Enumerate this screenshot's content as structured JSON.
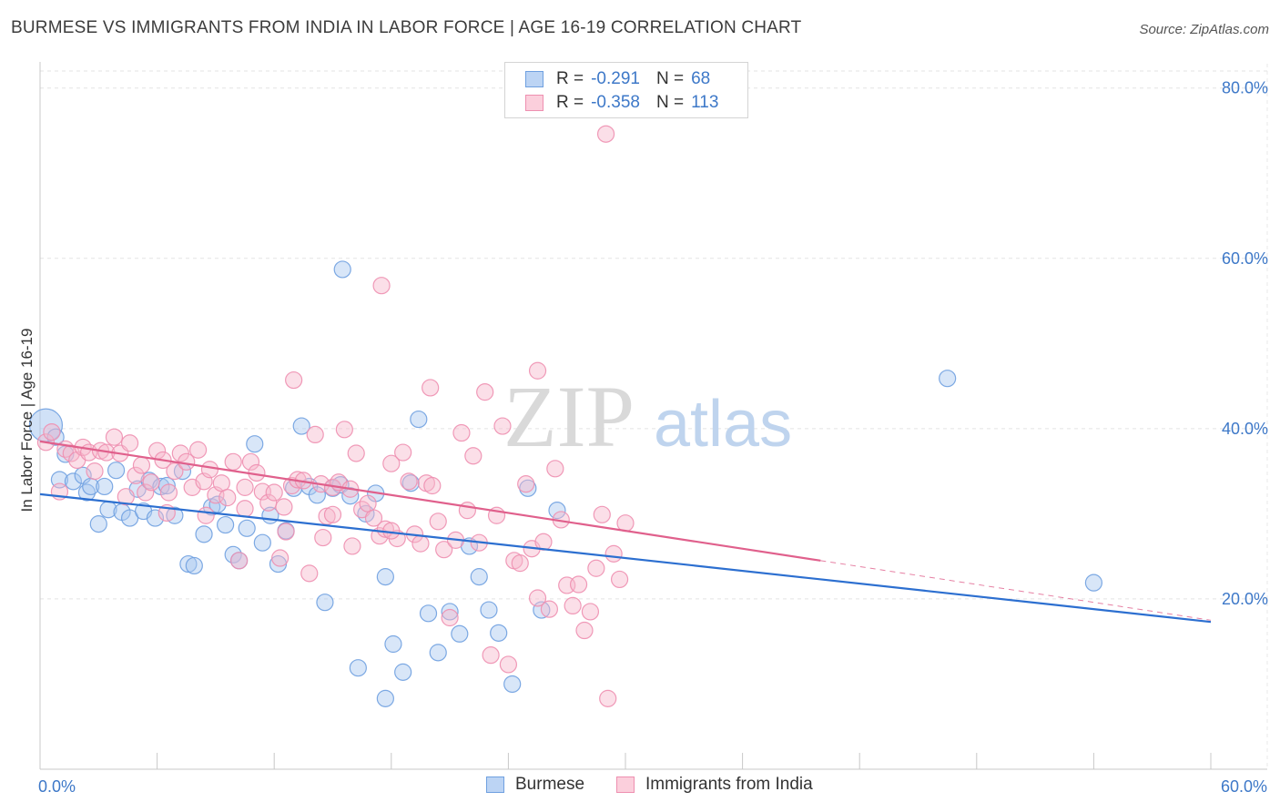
{
  "header": {
    "title": "BURMESE VS IMMIGRANTS FROM INDIA IN LABOR FORCE | AGE 16-19 CORRELATION CHART",
    "source": "Source: ZipAtlas.com"
  },
  "watermark": {
    "zip": "ZIP",
    "atlas": "atlas"
  },
  "legend": {
    "rows": [
      {
        "r_label": "R =",
        "r_value": "-0.291",
        "n_label": "N =",
        "n_value": "68",
        "color": "#a9c8f0"
      },
      {
        "r_label": "R =",
        "r_value": "-0.358",
        "n_label": "N =",
        "n_value": "113",
        "color": "#f7b9cc"
      }
    ]
  },
  "bottom_legend": {
    "series1": "Burmese",
    "series2": "Immigrants from India"
  },
  "chart_data": {
    "type": "scatter",
    "title": "BURMESE VS IMMIGRANTS FROM INDIA IN LABOR FORCE | AGE 16-19 CORRELATION CHART",
    "xlabel": "",
    "ylabel": "In Labor Force | Age 16-19",
    "xlim": [
      0,
      60
    ],
    "ylim": [
      0,
      82
    ],
    "x_tick_labels": {
      "min": "0.0%",
      "max": "60.0%"
    },
    "y_ticks": [
      {
        "value": 20,
        "label": "20.0%"
      },
      {
        "value": 40,
        "label": "40.0%"
      },
      {
        "value": 60,
        "label": "60.0%"
      },
      {
        "value": 80,
        "label": "80.0%"
      }
    ],
    "series": [
      {
        "name": "Burmese",
        "color": "#6fa0e0",
        "fill": "#a9c8f0",
        "line_color": "#2c6fd0",
        "trend": {
          "x0": 0,
          "y0": 32.3,
          "x1": 60,
          "y1": 17.3
        },
        "points": [
          [
            0.3,
            40.4
          ],
          [
            0.8,
            39.0
          ],
          [
            1.0,
            34.0
          ],
          [
            1.3,
            37.0
          ],
          [
            1.7,
            33.8
          ],
          [
            2.2,
            34.5
          ],
          [
            2.4,
            32.5
          ],
          [
            2.6,
            33.2
          ],
          [
            3.0,
            28.8
          ],
          [
            3.3,
            33.2
          ],
          [
            3.5,
            30.5
          ],
          [
            3.9,
            35.1
          ],
          [
            4.2,
            30.2
          ],
          [
            4.6,
            29.5
          ],
          [
            5.0,
            32.9
          ],
          [
            5.3,
            30.3
          ],
          [
            5.6,
            33.9
          ],
          [
            5.9,
            29.5
          ],
          [
            6.2,
            33.2
          ],
          [
            6.5,
            33.3
          ],
          [
            6.9,
            29.8
          ],
          [
            7.3,
            35.0
          ],
          [
            7.6,
            24.1
          ],
          [
            7.9,
            23.9
          ],
          [
            8.4,
            27.6
          ],
          [
            8.8,
            30.8
          ],
          [
            9.1,
            31.1
          ],
          [
            9.5,
            28.7
          ],
          [
            9.9,
            25.2
          ],
          [
            10.2,
            24.5
          ],
          [
            10.6,
            28.3
          ],
          [
            11.0,
            38.2
          ],
          [
            11.4,
            26.6
          ],
          [
            11.8,
            29.8
          ],
          [
            12.2,
            24.1
          ],
          [
            12.6,
            28.0
          ],
          [
            13.0,
            33.0
          ],
          [
            13.4,
            40.3
          ],
          [
            13.8,
            33.2
          ],
          [
            14.2,
            32.2
          ],
          [
            14.6,
            19.6
          ],
          [
            15.0,
            33.0
          ],
          [
            15.4,
            33.4
          ],
          [
            15.9,
            32.1
          ],
          [
            16.3,
            11.9
          ],
          [
            16.7,
            30.0
          ],
          [
            17.2,
            32.4
          ],
          [
            17.7,
            22.6
          ],
          [
            18.1,
            14.7
          ],
          [
            18.6,
            11.4
          ],
          [
            19.0,
            33.6
          ],
          [
            19.4,
            41.1
          ],
          [
            19.9,
            18.3
          ],
          [
            20.4,
            13.7
          ],
          [
            21.0,
            18.5
          ],
          [
            21.5,
            15.9
          ],
          [
            22.0,
            26.2
          ],
          [
            22.5,
            22.6
          ],
          [
            23.0,
            18.7
          ],
          [
            23.5,
            16.0
          ],
          [
            24.2,
            10.0
          ],
          [
            25.0,
            33.0
          ],
          [
            25.7,
            18.7
          ],
          [
            26.5,
            30.4
          ],
          [
            15.5,
            58.7
          ],
          [
            46.5,
            45.9
          ],
          [
            54.0,
            21.9
          ],
          [
            17.7,
            8.3
          ]
        ]
      },
      {
        "name": "Immigrants from India",
        "color": "#ee8fb0",
        "fill": "#f7b9cc",
        "line_color": "#e0608c",
        "trend": {
          "x0": 0,
          "y0": 38.5,
          "x1": 40,
          "y1": 24.5
        },
        "trend_dashed": {
          "x0": 40,
          "y0": 24.5,
          "x1": 60,
          "y1": 17.5
        },
        "points": [
          [
            0.3,
            38.4
          ],
          [
            0.6,
            39.6
          ],
          [
            1.0,
            32.6
          ],
          [
            1.3,
            37.6
          ],
          [
            1.6,
            37.1
          ],
          [
            1.9,
            36.3
          ],
          [
            2.2,
            37.8
          ],
          [
            2.5,
            37.2
          ],
          [
            2.8,
            35.0
          ],
          [
            3.1,
            37.4
          ],
          [
            3.4,
            37.2
          ],
          [
            3.8,
            39.0
          ],
          [
            4.1,
            37.1
          ],
          [
            4.4,
            32.0
          ],
          [
            4.6,
            38.3
          ],
          [
            4.9,
            34.5
          ],
          [
            5.2,
            35.7
          ],
          [
            5.4,
            32.5
          ],
          [
            5.7,
            33.7
          ],
          [
            6.0,
            37.4
          ],
          [
            6.3,
            36.3
          ],
          [
            6.6,
            32.5
          ],
          [
            6.9,
            35.0
          ],
          [
            7.2,
            37.1
          ],
          [
            7.5,
            36.1
          ],
          [
            7.8,
            33.1
          ],
          [
            8.1,
            37.5
          ],
          [
            8.4,
            33.8
          ],
          [
            8.7,
            35.2
          ],
          [
            9.0,
            32.2
          ],
          [
            9.3,
            33.6
          ],
          [
            9.6,
            31.9
          ],
          [
            9.9,
            36.1
          ],
          [
            10.2,
            24.5
          ],
          [
            10.5,
            33.1
          ],
          [
            10.8,
            36.1
          ],
          [
            11.1,
            34.8
          ],
          [
            11.4,
            32.6
          ],
          [
            11.7,
            31.3
          ],
          [
            12.0,
            32.5
          ],
          [
            12.3,
            24.8
          ],
          [
            12.6,
            27.9
          ],
          [
            12.9,
            33.3
          ],
          [
            13.2,
            34.0
          ],
          [
            13.5,
            33.9
          ],
          [
            13.8,
            23.0
          ],
          [
            14.1,
            39.3
          ],
          [
            14.4,
            33.5
          ],
          [
            14.7,
            29.7
          ],
          [
            15.0,
            33.1
          ],
          [
            15.3,
            33.7
          ],
          [
            15.6,
            39.9
          ],
          [
            15.9,
            32.9
          ],
          [
            16.2,
            37.1
          ],
          [
            16.5,
            30.5
          ],
          [
            16.8,
            31.2
          ],
          [
            17.1,
            29.5
          ],
          [
            17.4,
            27.4
          ],
          [
            17.7,
            28.2
          ],
          [
            18.0,
            35.9
          ],
          [
            18.3,
            27.1
          ],
          [
            18.6,
            37.2
          ],
          [
            18.9,
            33.8
          ],
          [
            19.2,
            27.6
          ],
          [
            19.5,
            26.5
          ],
          [
            19.8,
            33.6
          ],
          [
            20.1,
            33.3
          ],
          [
            20.4,
            29.1
          ],
          [
            20.7,
            25.8
          ],
          [
            21.0,
            17.8
          ],
          [
            21.3,
            26.9
          ],
          [
            21.6,
            39.5
          ],
          [
            21.9,
            30.4
          ],
          [
            22.2,
            36.8
          ],
          [
            22.5,
            26.6
          ],
          [
            22.8,
            44.3
          ],
          [
            23.1,
            13.4
          ],
          [
            23.4,
            29.8
          ],
          [
            23.7,
            40.3
          ],
          [
            24.0,
            12.3
          ],
          [
            24.3,
            24.5
          ],
          [
            24.6,
            24.2
          ],
          [
            24.9,
            33.5
          ],
          [
            25.2,
            25.9
          ],
          [
            25.5,
            20.1
          ],
          [
            25.8,
            26.7
          ],
          [
            26.1,
            18.8
          ],
          [
            26.4,
            35.3
          ],
          [
            26.7,
            29.3
          ],
          [
            27.0,
            21.6
          ],
          [
            27.3,
            19.2
          ],
          [
            27.6,
            21.7
          ],
          [
            27.9,
            16.3
          ],
          [
            28.2,
            18.5
          ],
          [
            28.5,
            23.6
          ],
          [
            28.8,
            29.9
          ],
          [
            29.1,
            8.3
          ],
          [
            29.4,
            25.3
          ],
          [
            29.7,
            22.3
          ],
          [
            30.0,
            28.9
          ],
          [
            13.0,
            45.7
          ],
          [
            17.5,
            56.8
          ],
          [
            20.0,
            44.8
          ],
          [
            25.5,
            46.8
          ],
          [
            15.0,
            29.9
          ],
          [
            10.5,
            30.6
          ],
          [
            12.5,
            30.8
          ],
          [
            14.5,
            27.2
          ],
          [
            16.0,
            26.2
          ],
          [
            18.0,
            28.0
          ],
          [
            6.5,
            30.1
          ],
          [
            8.5,
            29.8
          ],
          [
            29.0,
            74.6
          ]
        ]
      }
    ]
  }
}
